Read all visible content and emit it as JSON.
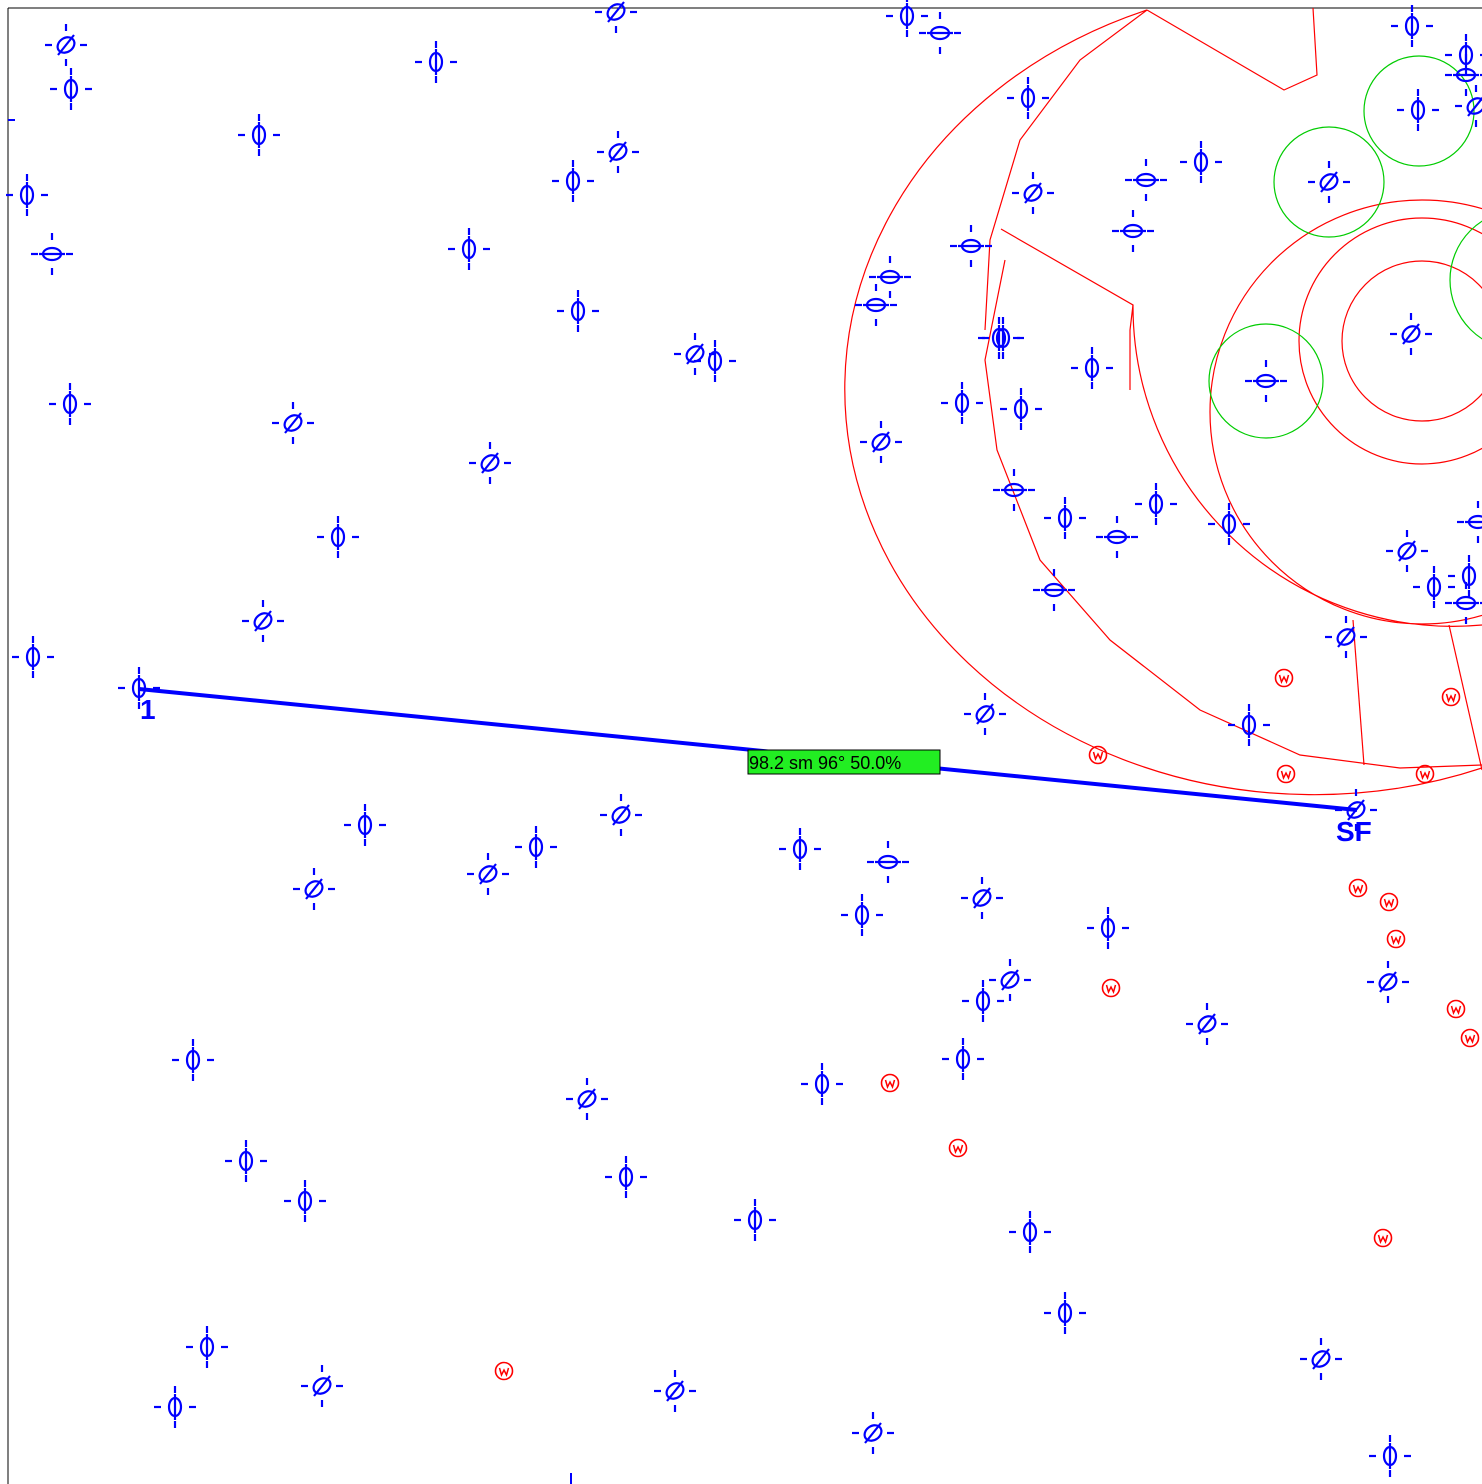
{
  "colors": {
    "background": "#ffffff",
    "frame": "#000000",
    "station": "#0000ff",
    "sector_lines": "#ff0000",
    "rings": "#ff0000",
    "range_circles": "#00cc00",
    "warning_markers": "#ff0000",
    "leg_line": "#0000ff",
    "readout_bg": "#22ee22"
  },
  "route": {
    "start_label": "1",
    "end_label": "SF",
    "readout": "98.2 sm  96° 50.0%"
  },
  "icons": {
    "station": "vor-station-icon",
    "warning": "warning-marker-icon"
  }
}
